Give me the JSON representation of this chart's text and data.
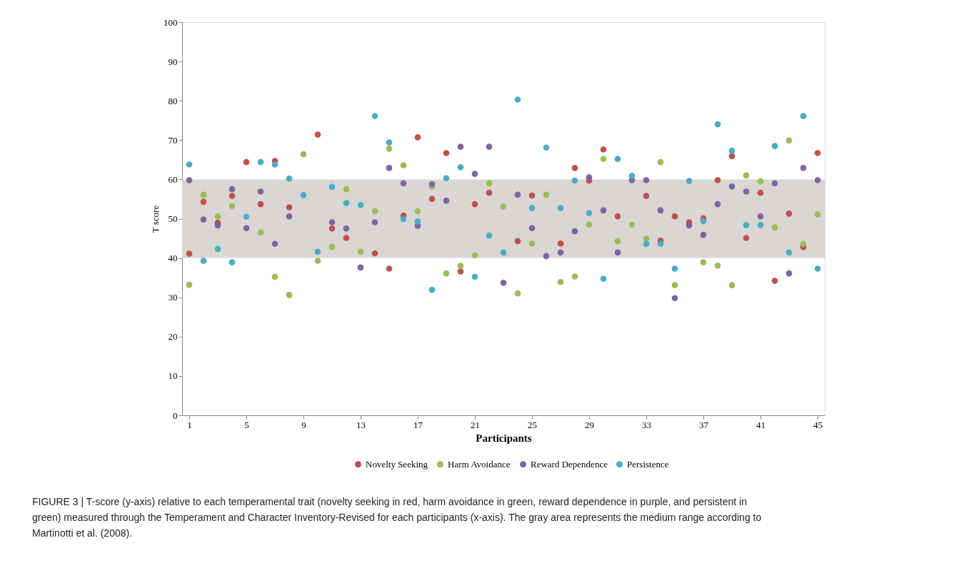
{
  "chart_data": {
    "type": "scatter",
    "xlabel": "Participants",
    "ylabel": "T score",
    "x": [
      1,
      2,
      3,
      4,
      5,
      6,
      7,
      8,
      9,
      10,
      11,
      12,
      13,
      14,
      15,
      16,
      17,
      18,
      19,
      20,
      21,
      22,
      23,
      24,
      25,
      26,
      27,
      28,
      29,
      30,
      31,
      32,
      33,
      34,
      35,
      36,
      37,
      38,
      39,
      40,
      41,
      42,
      43,
      44,
      45
    ],
    "xlim": [
      0.5,
      45.5
    ],
    "xticks": [
      1,
      5,
      9,
      13,
      17,
      21,
      25,
      29,
      33,
      37,
      41,
      45
    ],
    "ylim": [
      0,
      100
    ],
    "yticks": [
      0,
      10,
      20,
      30,
      40,
      50,
      60,
      70,
      80,
      90,
      100
    ],
    "grid": false,
    "legend": "bottom",
    "marker": "circle",
    "bands": [
      {
        "axis": "y",
        "from": 40,
        "to": 60,
        "color": "#d9d6d3"
      }
    ],
    "series": [
      {
        "name": "Novelty Seeking",
        "color": "#c0504d",
        "values": [
          41.1,
          54.3,
          49.0,
          55.8,
          64.4,
          53.7,
          64.7,
          52.9,
          null,
          71.4,
          47.5,
          45.1,
          null,
          41.2,
          37.3,
          50.8,
          70.7,
          55.0,
          66.7,
          36.6,
          53.7,
          56.6,
          null,
          44.3,
          55.9,
          null,
          43.7,
          62.9,
          59.7,
          67.6,
          50.6,
          null,
          55.8,
          44.4,
          50.6,
          49.1,
          50.1,
          59.8,
          65.9,
          45.1,
          56.6,
          34.2,
          51.3,
          42.8,
          66.7
        ]
      },
      {
        "name": "Harm Avoidance",
        "color": "#9bbb59",
        "values": [
          33.2,
          56.1,
          50.6,
          53.2,
          null,
          46.5,
          35.2,
          30.6,
          66.4,
          39.3,
          42.8,
          57.5,
          41.6,
          51.9,
          67.8,
          63.6,
          51.9,
          58.2,
          36.1,
          38.0,
          40.7,
          59.0,
          53.1,
          31.0,
          43.7,
          56.1,
          33.9,
          35.3,
          48.5,
          65.2,
          44.3,
          48.5,
          44.9,
          64.4,
          33.1,
          null,
          38.9,
          38.1,
          33.1,
          61.0,
          59.5,
          47.8,
          69.9,
          43.6,
          51.1
        ]
      },
      {
        "name": "Reward Dependence",
        "color": "#8064a2",
        "values": [
          59.8,
          49.8,
          48.3,
          57.5,
          47.6,
          56.9,
          43.6,
          50.6,
          null,
          null,
          49.1,
          47.5,
          37.6,
          49.1,
          62.9,
          59.0,
          48.2,
          58.8,
          54.6,
          68.3,
          61.4,
          68.3,
          33.7,
          56.1,
          47.6,
          40.5,
          41.4,
          46.8,
          60.5,
          52.1,
          41.4,
          59.8,
          59.8,
          52.1,
          29.8,
          48.3,
          45.9,
          53.7,
          58.2,
          56.9,
          50.6,
          59.0,
          36.1,
          62.9,
          59.8
        ]
      },
      {
        "name": "Persistence",
        "color": "#4bacc6",
        "values": [
          63.8,
          39.3,
          42.3,
          38.9,
          50.5,
          64.4,
          63.8,
          60.2,
          56.0,
          41.6,
          58.1,
          54.0,
          53.5,
          76.1,
          69.4,
          49.9,
          49.3,
          31.9,
          60.3,
          63.1,
          35.2,
          45.7,
          41.4,
          80.3,
          52.7,
          68.1,
          52.7,
          59.7,
          51.4,
          34.7,
          65.2,
          60.9,
          43.6,
          43.6,
          37.3,
          59.6,
          49.4,
          74.0,
          67.3,
          48.4,
          48.4,
          68.5,
          41.4,
          76.1,
          37.3
        ]
      }
    ],
    "annotations": [
      "FIGURE 3 | T-score (y-axis) relative to each temperamental trait (novelty seeking in red, harm avoidance in green, reward dependence in purple, and persistent in green) measured through the Temperament and Character Inventory-Revised for each participants (x-axis). The gray area represents the medium range according to Martinotti et al. (2008)."
    ]
  }
}
